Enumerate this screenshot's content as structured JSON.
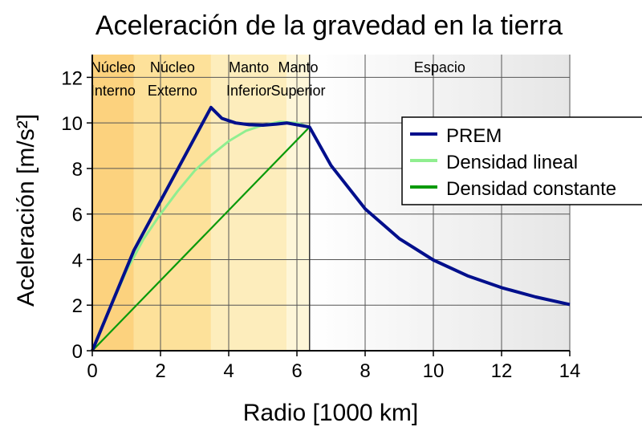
{
  "chart_data": {
    "type": "line",
    "title": "Aceleración de la gravedad en la tierra",
    "xlabel": "Radio [1000 km]",
    "ylabel": "Aceleración [m/s²]",
    "xlim": [
      0,
      14
    ],
    "ylim": [
      0,
      13
    ],
    "xticks": [
      0,
      2,
      4,
      6,
      8,
      10,
      12,
      14
    ],
    "yticks": [
      0,
      2,
      4,
      6,
      8,
      10,
      12
    ],
    "grid": true,
    "legend_position": "right",
    "regions": [
      {
        "line1": "Núcleo",
        "line2": "Interno",
        "from": 0,
        "to": 1.22,
        "color": "#fcd27e"
      },
      {
        "line1": "Núcleo",
        "line2": "Externo",
        "from": 1.22,
        "to": 3.48,
        "color": "#fde19a"
      },
      {
        "line1": "Manto",
        "line2": "Inferior",
        "from": 3.48,
        "to": 5.7,
        "color": "#fdedbc"
      },
      {
        "line1": "Manto",
        "line2": "Superior",
        "from": 5.7,
        "to": 6.37,
        "color": "#fef6d8"
      },
      {
        "line1": "Espacio",
        "line2": "",
        "from": 6.37,
        "to": 14,
        "color": "#ececec"
      }
    ],
    "series": [
      {
        "name": "PREM",
        "color": "#000f8c",
        "x": [
          0,
          1.22,
          3.48,
          3.8,
          4.2,
          4.6,
          5.0,
          5.4,
          5.7,
          6.37,
          7,
          8,
          9,
          10,
          11,
          12,
          13,
          14
        ],
        "y": [
          0,
          4.4,
          10.68,
          10.2,
          10.0,
          9.92,
          9.9,
          9.95,
          10.0,
          9.82,
          8.13,
          6.23,
          4.92,
          3.98,
          3.29,
          2.77,
          2.36,
          2.03
        ]
      },
      {
        "name": "Densidad lineal",
        "color": "#90ee90",
        "x": [
          0,
          0.5,
          1,
          1.5,
          2,
          2.5,
          3,
          3.5,
          4,
          4.5,
          5,
          5.5,
          6,
          6.37
        ],
        "y": [
          0,
          1.8,
          3.5,
          4.9,
          6.0,
          7.0,
          7.9,
          8.6,
          9.2,
          9.65,
          9.9,
          10.05,
          10.0,
          9.82
        ]
      },
      {
        "name": "Densidad constante",
        "color": "#0a9a0a",
        "x": [
          0,
          6.37
        ],
        "y": [
          0,
          9.82
        ]
      }
    ]
  }
}
